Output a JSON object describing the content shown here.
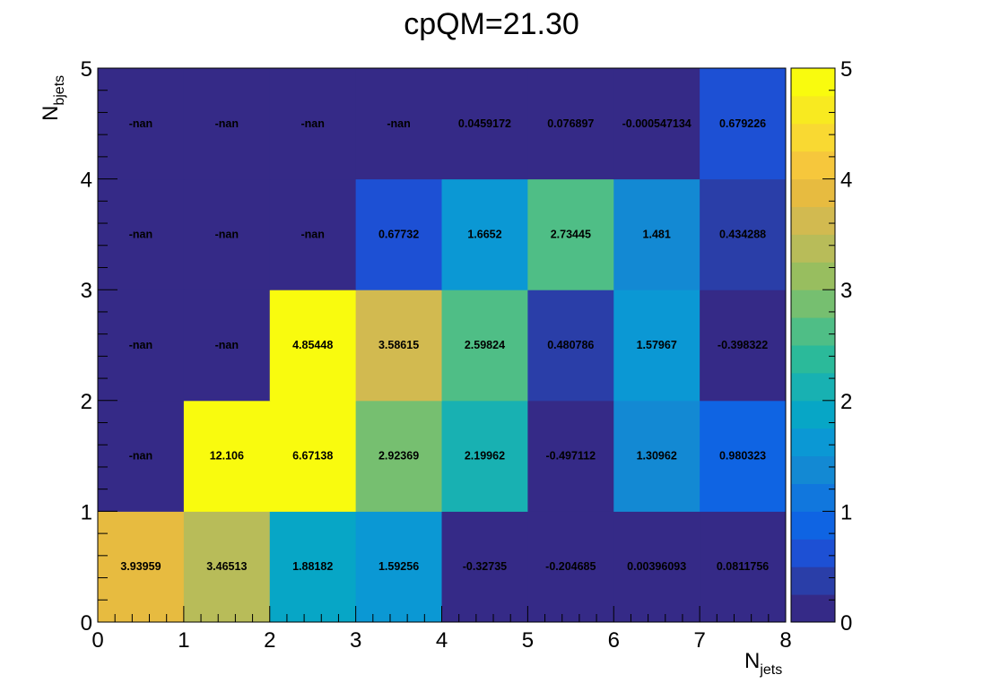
{
  "chart_data": {
    "type": "heatmap",
    "title": "cpQM=21.30",
    "xlabel": {
      "main": "N",
      "sub": "jets"
    },
    "ylabel": {
      "main": "N",
      "sub": "bjets"
    },
    "x_edges": [
      0,
      1,
      2,
      3,
      4,
      5,
      6,
      7,
      8
    ],
    "y_edges": [
      0,
      1,
      2,
      3,
      4,
      5
    ],
    "xlim": [
      0,
      8
    ],
    "ylim": [
      0,
      5
    ],
    "zlim": [
      0,
      5
    ],
    "x_ticks": [
      "0",
      "1",
      "2",
      "3",
      "4",
      "5",
      "6",
      "7",
      "8"
    ],
    "y_ticks": [
      "0",
      "1",
      "2",
      "3",
      "4",
      "5"
    ],
    "z_ticks": [
      "0",
      "1",
      "2",
      "3",
      "4",
      "5"
    ],
    "colormap": [
      "#352a87",
      "#2a3ea8",
      "#1d50d4",
      "#0f64e3",
      "#1177dd",
      "#1389d3",
      "#0b98d4",
      "#07a6c6",
      "#18b1b2",
      "#2bba9a",
      "#4fbe86",
      "#76bf70",
      "#98be5f",
      "#b8bc59",
      "#d2ba50",
      "#e7bb40",
      "#f6c73c",
      "#f9d932",
      "#f8ea20",
      "#f9fb0e"
    ],
    "rows": [
      {
        "y": 0,
        "labels": [
          "3.93959",
          "3.46513",
          "1.88182",
          "1.59256",
          "-0.32735",
          "-0.204685",
          "0.00396093",
          "0.0811756"
        ],
        "values": [
          3.93959,
          3.46513,
          1.88182,
          1.59256,
          -0.32735,
          -0.204685,
          0.00396093,
          0.0811756
        ]
      },
      {
        "y": 1,
        "labels": [
          "-nan",
          "12.106",
          "6.67138",
          "2.92369",
          "2.19962",
          "-0.497112",
          "1.30962",
          "0.980323"
        ],
        "values": [
          null,
          12.106,
          6.67138,
          2.92369,
          2.19962,
          -0.497112,
          1.30962,
          0.980323
        ]
      },
      {
        "y": 2,
        "labels": [
          "-nan",
          "-nan",
          "4.85448",
          "3.58615",
          "2.59824",
          "0.480786",
          "1.57967",
          "-0.398322"
        ],
        "values": [
          null,
          null,
          4.85448,
          3.58615,
          2.59824,
          0.480786,
          1.57967,
          -0.398322
        ]
      },
      {
        "y": 3,
        "labels": [
          "-nan",
          "-nan",
          "-nan",
          "0.67732",
          "1.6652",
          "2.73445",
          "1.481",
          "0.434288"
        ],
        "values": [
          null,
          null,
          null,
          0.67732,
          1.6652,
          2.73445,
          1.481,
          0.434288
        ]
      },
      {
        "y": 4,
        "labels": [
          "-nan",
          "-nan",
          "-nan",
          "-nan",
          "0.0459172",
          "0.076897",
          "-0.000547134",
          "0.679226"
        ],
        "values": [
          null,
          null,
          null,
          null,
          0.0459172,
          0.076897,
          -0.000547134,
          0.679226
        ]
      }
    ]
  }
}
